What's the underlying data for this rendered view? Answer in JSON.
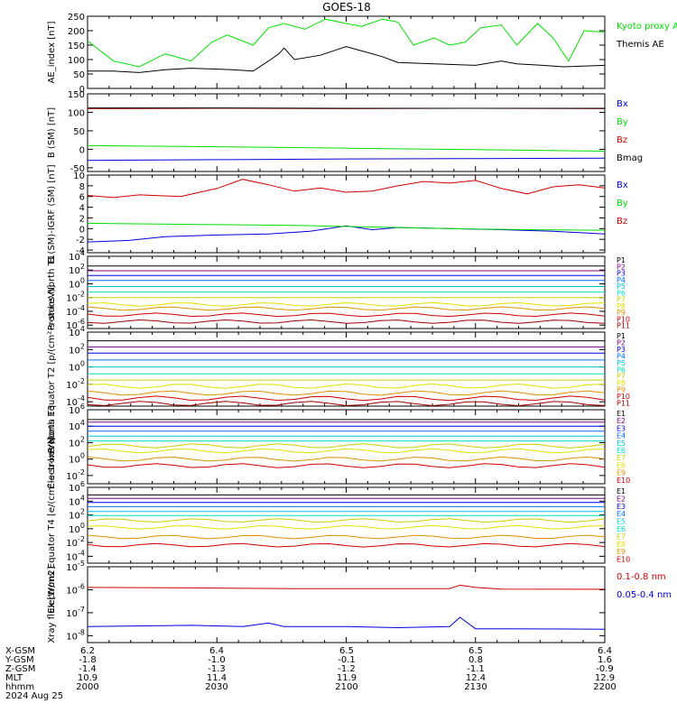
{
  "title": "GOES-18",
  "colors": {
    "black": "#000000",
    "green": "#00e000",
    "blue": "#0000dd",
    "red": "#d00000",
    "P": [
      "#000000",
      "#800080",
      "#0000e0",
      "#0070ff",
      "#00c0e0",
      "#00e0c0",
      "#c8d000",
      "#e0e000",
      "#e09000",
      "#d00000",
      "#a00000"
    ],
    "E": [
      "#000000",
      "#800080",
      "#0000e0",
      "#0070ff",
      "#00c0e0",
      "#00e0c0",
      "#c8d000",
      "#e0e000",
      "#e09000",
      "#d00000",
      "#a00000"
    ]
  },
  "chart_data": [
    {
      "type": "line",
      "ylabel": "AE_index [nT]",
      "ylim": [
        0,
        250
      ],
      "y_ticks": [
        "250",
        "200",
        "150",
        "100",
        "50",
        "0"
      ],
      "y_tick_values": [
        250,
        200,
        150,
        100,
        50,
        0
      ],
      "series": [
        {
          "name": "Kyoto proxy AE",
          "color": "#00e000",
          "values": [
            [
              0,
              165
            ],
            [
              0.05,
              95
            ],
            [
              0.1,
              75
            ],
            [
              0.15,
              120
            ],
            [
              0.18,
              105
            ],
            [
              0.2,
              95
            ],
            [
              0.24,
              160
            ],
            [
              0.27,
              185
            ],
            [
              0.32,
              150
            ],
            [
              0.35,
              210
            ],
            [
              0.38,
              225
            ],
            [
              0.42,
              205
            ],
            [
              0.46,
              240
            ],
            [
              0.5,
              225
            ],
            [
              0.53,
              215
            ],
            [
              0.57,
              240
            ],
            [
              0.6,
              230
            ],
            [
              0.63,
              150
            ],
            [
              0.67,
              175
            ],
            [
              0.7,
              150
            ],
            [
              0.73,
              160
            ],
            [
              0.76,
              210
            ],
            [
              0.8,
              220
            ],
            [
              0.83,
              150
            ],
            [
              0.87,
              225
            ],
            [
              0.9,
              175
            ],
            [
              0.93,
              95
            ],
            [
              0.96,
              200
            ],
            [
              1.0,
              195
            ]
          ]
        },
        {
          "name": "Themis AE",
          "color": "#000000",
          "values": [
            [
              0,
              60
            ],
            [
              0.05,
              60
            ],
            [
              0.1,
              55
            ],
            [
              0.15,
              65
            ],
            [
              0.2,
              70
            ],
            [
              0.28,
              65
            ],
            [
              0.32,
              60
            ],
            [
              0.35,
              95
            ],
            [
              0.37,
              120
            ],
            [
              0.38,
              140
            ],
            [
              0.4,
              100
            ],
            [
              0.45,
              115
            ],
            [
              0.5,
              145
            ],
            [
              0.53,
              130
            ],
            [
              0.57,
              110
            ],
            [
              0.6,
              90
            ],
            [
              0.67,
              85
            ],
            [
              0.75,
              80
            ],
            [
              0.8,
              95
            ],
            [
              0.83,
              85
            ],
            [
              0.88,
              80
            ],
            [
              0.92,
              75
            ],
            [
              1.0,
              80
            ]
          ]
        }
      ],
      "legend": [
        "Kyoto proxy AE",
        "Themis AE"
      ]
    },
    {
      "type": "line",
      "ylabel": "B (SM) [nT]",
      "ylim": [
        -60,
        150
      ],
      "y_ticks": [
        "150",
        "100",
        "50",
        "0",
        "-50"
      ],
      "y_tick_values": [
        150,
        100,
        50,
        0,
        -50
      ],
      "series": [
        {
          "name": "Bx",
          "color": "#0000dd",
          "values": [
            [
              0,
              -30
            ],
            [
              0.25,
              -28
            ],
            [
              0.5,
              -26
            ],
            [
              0.75,
              -25
            ],
            [
              1.0,
              -24
            ]
          ]
        },
        {
          "name": "By",
          "color": "#00e000",
          "values": [
            [
              0,
              10
            ],
            [
              0.25,
              7
            ],
            [
              0.5,
              3
            ],
            [
              0.75,
              -1
            ],
            [
              1.0,
              -5
            ]
          ]
        },
        {
          "name": "Bz",
          "color": "#d00000",
          "values": [
            [
              0,
              110
            ],
            [
              0.25,
              111
            ],
            [
              0.5,
              110
            ],
            [
              0.75,
              111
            ],
            [
              1.0,
              110
            ]
          ]
        },
        {
          "name": "Bmag",
          "color": "#000000",
          "values": [
            [
              0,
              112
            ],
            [
              0.25,
              112
            ],
            [
              0.5,
              111
            ],
            [
              0.75,
              111
            ],
            [
              1.0,
              111
            ]
          ]
        }
      ],
      "legend": [
        "Bx",
        "By",
        "Bz",
        "Bmag"
      ]
    },
    {
      "type": "line",
      "ylabel": "B (SM)-IGRF (SM) [nT]",
      "ylim": [
        -4.5,
        10
      ],
      "y_ticks": [
        "10",
        "8",
        "6",
        "4",
        "2",
        "0",
        "-2",
        "-4"
      ],
      "y_tick_values": [
        10,
        8,
        6,
        4,
        2,
        0,
        -2,
        -4
      ],
      "series": [
        {
          "name": "Bx",
          "color": "#0000dd",
          "values": [
            [
              0,
              -2.5
            ],
            [
              0.08,
              -2.2
            ],
            [
              0.15,
              -1.5
            ],
            [
              0.25,
              -1.2
            ],
            [
              0.35,
              -1.0
            ],
            [
              0.43,
              -0.5
            ],
            [
              0.5,
              0.5
            ],
            [
              0.55,
              -0.2
            ],
            [
              0.6,
              0.2
            ],
            [
              0.7,
              0.0
            ],
            [
              0.8,
              -0.2
            ],
            [
              0.9,
              -0.5
            ],
            [
              1.0,
              -1.0
            ]
          ]
        },
        {
          "name": "By",
          "color": "#00e000",
          "values": [
            [
              0,
              1.0
            ],
            [
              0.2,
              0.8
            ],
            [
              0.4,
              0.6
            ],
            [
              0.55,
              0.3
            ],
            [
              0.7,
              0.0
            ],
            [
              0.85,
              -0.2
            ],
            [
              1.0,
              -0.3
            ]
          ]
        },
        {
          "name": "Bz",
          "color": "#d00000",
          "values": [
            [
              0,
              6.2
            ],
            [
              0.05,
              5.8
            ],
            [
              0.1,
              6.3
            ],
            [
              0.18,
              6.0
            ],
            [
              0.25,
              7.5
            ],
            [
              0.3,
              9.2
            ],
            [
              0.35,
              8.2
            ],
            [
              0.4,
              7.0
            ],
            [
              0.45,
              7.6
            ],
            [
              0.5,
              6.8
            ],
            [
              0.55,
              7.0
            ],
            [
              0.6,
              8.0
            ],
            [
              0.65,
              8.8
            ],
            [
              0.7,
              8.5
            ],
            [
              0.75,
              9.0
            ],
            [
              0.8,
              7.5
            ],
            [
              0.85,
              6.5
            ],
            [
              0.9,
              7.8
            ],
            [
              0.95,
              8.2
            ],
            [
              1.0,
              7.6
            ]
          ]
        }
      ],
      "legend": [
        "Bx",
        "By",
        "Bz"
      ]
    },
    {
      "type": "line",
      "log": true,
      "ylabel": "Protons North T1",
      "ylim": [
        -6.5,
        4
      ],
      "y_ticks": [
        "10^4",
        "10^2",
        "10^0",
        "10^-2",
        "10^-4",
        "10^-6"
      ],
      "y_tick_values": [
        4,
        2,
        0,
        -2,
        -4,
        -6
      ],
      "levels": [
        2.6,
        1.9,
        1.2,
        0.5,
        -0.4,
        -1.2,
        -2.0,
        -3.0,
        -3.6,
        -4.5,
        -5.5
      ],
      "legend": [
        "P1",
        "P2",
        "P3",
        "P4",
        "P5",
        "P6",
        "P7",
        "P8",
        "P9",
        "P10",
        "P11"
      ]
    },
    {
      "type": "line",
      "log": true,
      "ylabel": "Protons Equator T2 [p/(cm²-s-sr-keV)]",
      "ylim": [
        -4.5,
        4
      ],
      "y_ticks": [
        "10^4",
        "10^2",
        "10^0",
        "10^-2",
        "10^-4"
      ],
      "y_tick_values": [
        4,
        2,
        0,
        -2,
        -4
      ],
      "levels": [
        3.0,
        2.3,
        1.6,
        0.8,
        0.0,
        -0.8,
        -1.5,
        -2.2,
        -3.0,
        -3.6,
        -4.2
      ],
      "legend": [
        "P1",
        "P2",
        "P3",
        "P4",
        "P5",
        "P6",
        "P7",
        "P8",
        "P9",
        "P10",
        "P11"
      ]
    },
    {
      "type": "line",
      "log": true,
      "ylabel": "Electrons North T3",
      "ylim": [
        -3,
        6
      ],
      "y_ticks": [
        "10^6",
        "10^4",
        "10^2",
        "10^0",
        "10^-2"
      ],
      "y_tick_values": [
        6,
        4,
        2,
        0,
        -2
      ],
      "levels": [
        4.8,
        4.5,
        4.0,
        3.4,
        2.8,
        2.2,
        1.6,
        1.0,
        0.0,
        -0.8
      ],
      "legend": [
        "E1",
        "E2",
        "E3",
        "E4",
        "E5",
        "E6",
        "E7",
        "E8",
        "E9",
        "E10"
      ]
    },
    {
      "type": "line",
      "log": true,
      "ylabel": "Electrons Equator T4 [e/(cm²-s-sr-keV)]",
      "ylim": [
        -5,
        6
      ],
      "y_ticks": [
        "10^6",
        "10^4",
        "10^2",
        "10^0",
        "10^-2",
        "10^-4"
      ],
      "y_tick_values": [
        6,
        4,
        2,
        0,
        -2,
        -4
      ],
      "levels": [
        4.9,
        4.4,
        3.8,
        3.2,
        2.5,
        1.9,
        1.2,
        0.2,
        -1.2,
        -2.4
      ],
      "legend": [
        "E1",
        "E2",
        "E3",
        "E4",
        "E5",
        "E6",
        "E7",
        "E8",
        "E9",
        "E10"
      ]
    },
    {
      "type": "line",
      "log": true,
      "ylabel": "Xray flux [W/m2]",
      "ylim": [
        -8.3,
        -5
      ],
      "y_ticks": [
        "10^-5",
        "10^-6",
        "10^-7",
        "10^-8"
      ],
      "y_tick_values": [
        -5,
        -6,
        -7,
        -8
      ],
      "series": [
        {
          "name": "0.1-0.8 nm",
          "color": "#d00000",
          "values": [
            [
              0,
              -5.9
            ],
            [
              0.2,
              -5.92
            ],
            [
              0.4,
              -5.95
            ],
            [
              0.6,
              -5.95
            ],
            [
              0.7,
              -5.95
            ],
            [
              0.72,
              -5.8
            ],
            [
              0.75,
              -5.9
            ],
            [
              0.8,
              -5.97
            ],
            [
              1.0,
              -5.98
            ]
          ]
        },
        {
          "name": "0.05-0.4 nm",
          "color": "#0000dd",
          "values": [
            [
              0,
              -7.6
            ],
            [
              0.2,
              -7.55
            ],
            [
              0.3,
              -7.6
            ],
            [
              0.35,
              -7.45
            ],
            [
              0.38,
              -7.6
            ],
            [
              0.5,
              -7.6
            ],
            [
              0.6,
              -7.65
            ],
            [
              0.7,
              -7.6
            ],
            [
              0.72,
              -7.2
            ],
            [
              0.75,
              -7.7
            ],
            [
              0.8,
              -7.7
            ],
            [
              1.0,
              -7.72
            ]
          ]
        }
      ],
      "legend": [
        "0.1-0.8 nm",
        "0.05-0.4 nm"
      ]
    }
  ],
  "xaxis": {
    "row_labels": [
      "X-GSM",
      "Y-GSM",
      "Z-GSM",
      "MLT",
      "hhmm",
      "2024 Aug 25"
    ],
    "columns": [
      [
        "6.2",
        "-1.8",
        "-1.4",
        "10.9",
        "2000"
      ],
      [
        "6.4",
        "-1.0",
        "-1.3",
        "11.4",
        "2030"
      ],
      [
        "6.5",
        "-0.1",
        "-1.2",
        "11.9",
        "2100"
      ],
      [
        "6.5",
        "0.8",
        "-1.1",
        "12.4",
        "2130"
      ],
      [
        "6.4",
        "1.6",
        "-0.9",
        "12.9",
        "2200"
      ]
    ]
  }
}
